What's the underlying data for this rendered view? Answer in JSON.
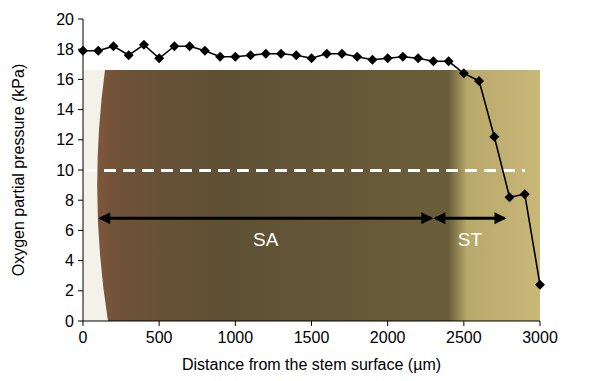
{
  "chart_data": {
    "type": "line",
    "x_label": "Distance from the stem surface (µm)",
    "y_label": "Oxygen partial pressure (kPa)",
    "x": [
      0,
      100,
      200,
      300,
      400,
      500,
      600,
      700,
      800,
      900,
      1000,
      1100,
      1200,
      1300,
      1400,
      1500,
      1600,
      1700,
      1800,
      1900,
      2000,
      2100,
      2200,
      2300,
      2400,
      2500,
      2600,
      2700,
      2800,
      2900,
      3000
    ],
    "series": [
      {
        "name": "Oxygen partial pressure",
        "color": "#000000",
        "marker": "diamond",
        "line_style": "solid",
        "values": [
          17.9,
          17.9,
          18.2,
          17.6,
          18.3,
          17.4,
          18.2,
          18.2,
          17.9,
          17.5,
          17.5,
          17.6,
          17.7,
          17.7,
          17.6,
          17.4,
          17.7,
          17.7,
          17.5,
          17.3,
          17.4,
          17.5,
          17.4,
          17.2,
          17.2,
          16.4,
          15.9,
          12.2,
          8.2,
          8.4,
          2.4
        ]
      }
    ],
    "xlim": [
      0,
      3000
    ],
    "xticks": [
      0,
      500,
      1000,
      1500,
      2000,
      2500,
      3000
    ],
    "ylim": [
      0,
      20
    ],
    "yticks": [
      0,
      2,
      4,
      6,
      8,
      10,
      12,
      14,
      16,
      18,
      20
    ],
    "grid": false,
    "annotations": [
      {
        "text": "SA",
        "x": [
          100,
          2300
        ],
        "y": 6.8
      },
      {
        "text": "ST",
        "x": [
          2300,
          2780
        ],
        "y": 6.8
      }
    ]
  }
}
